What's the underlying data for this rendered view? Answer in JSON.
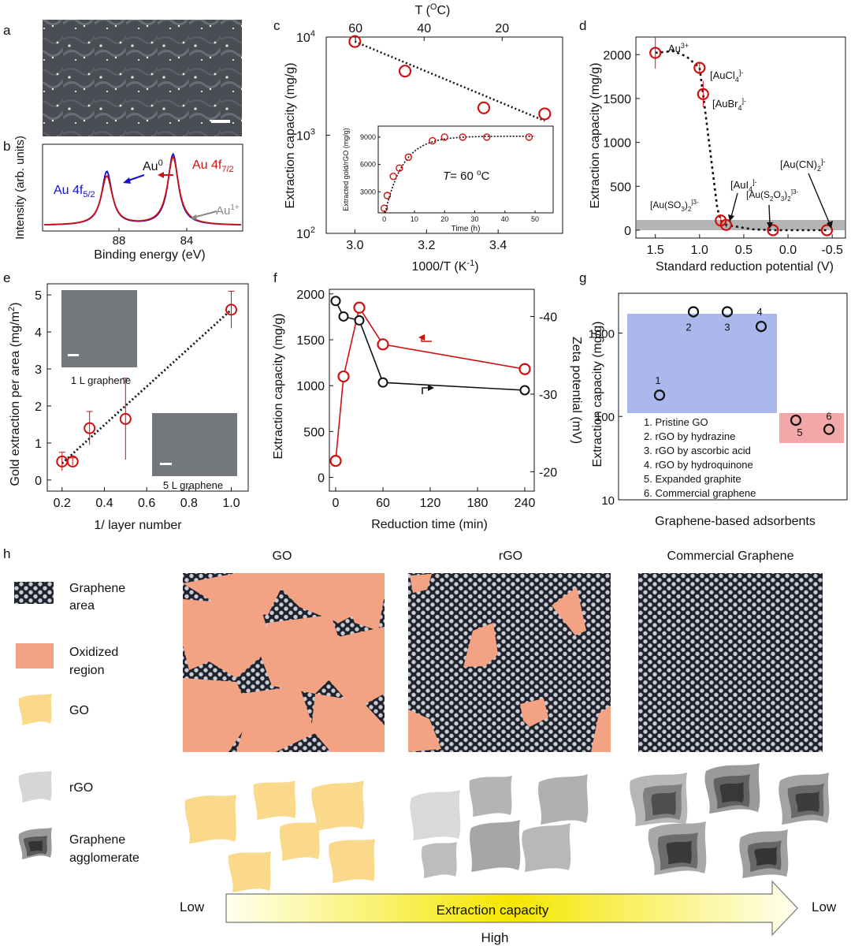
{
  "panel_letters": {
    "a": "a",
    "b": "b",
    "c": "c",
    "d": "d",
    "e": "e",
    "f": "f",
    "g": "g",
    "h": "h"
  },
  "colors": {
    "red": "#d01010",
    "blue": "#1010d0",
    "black": "#111111",
    "gray": "#888888",
    "blue_box": "#aab8ee",
    "red_box": "#f2a8a8",
    "oxidized": "#f3a283",
    "go_flake": "#fbd98a",
    "rgo_flake": "#bdbdbd",
    "graphene_bg": "#20232b",
    "hex_fill": "#c9ccd6",
    "arrow_grad_start": "#ffffee",
    "arrow_grad_end": "#f5e600"
  },
  "chart_data": [
    {
      "id": "b",
      "type": "line",
      "xlabel": "Binding energy (eV)",
      "ylabel": "Intensity (arb. units)",
      "xticks": [
        "88",
        "84"
      ],
      "annotations": {
        "au52": "Au 4f",
        "au52_sub": "5/2",
        "au0": "Au",
        "au0_sup": "0",
        "au72": "Au 4f",
        "au72_sub": "7/2",
        "au1": "Au",
        "au1_sup": "1+"
      },
      "series": [
        {
          "peaks": [
            {
              "center": 88.0,
              "height": 0.68,
              "width": 0.35
            },
            {
              "center": 84.3,
              "height": 0.9,
              "width": 0.35
            }
          ],
          "color": "blue"
        },
        {
          "peaks": [
            {
              "center": 88.0,
              "height": 0.62,
              "width": 0.38
            },
            {
              "center": 84.3,
              "height": 0.86,
              "width": 0.38
            }
          ],
          "color": "red"
        }
      ],
      "xlim": [
        91.5,
        80.5
      ]
    },
    {
      "id": "c",
      "type": "scatter",
      "yscale": "log",
      "xlabel": "1000/T (K",
      "xlabel_sup": "-1",
      "xlabel_end": ")",
      "ylabel": "Extraction capacity (mg/g)",
      "top_axis_label": "T (",
      "top_axis_sup": "O",
      "top_axis_end": "C)",
      "xticks": [
        "3.0",
        "3.2",
        "3.4"
      ],
      "top_ticks": [
        "60",
        "40",
        "20"
      ],
      "yticks": [
        "10",
        "10",
        "10"
      ],
      "ytick_exps": [
        "4",
        "3",
        "2"
      ],
      "x": [
        3.0,
        3.14,
        3.36,
        3.53
      ],
      "y": [
        9000,
        4500,
        1900,
        1650
      ],
      "fit_x": [
        3.0,
        3.53
      ],
      "fit_y": [
        9000,
        1400
      ],
      "xlim": [
        2.92,
        3.58
      ],
      "ylim": [
        100,
        10000
      ],
      "inset": {
        "xlabel": "Time (h)",
        "ylabel": "Extracted gold/rGO (mg/g)",
        "xticks": [
          "0",
          "10",
          "20",
          "30",
          "40",
          "50"
        ],
        "yticks": [
          "3000",
          "6000",
          "9000"
        ],
        "annotation": "T",
        "annotation_rest": "= 60 ",
        "annotation_sup": "o",
        "annotation_end": "C",
        "x": [
          0,
          1,
          3,
          5,
          8,
          16,
          20,
          26,
          34,
          48
        ],
        "y": [
          1200,
          2600,
          4700,
          5600,
          6800,
          8600,
          9000,
          9000,
          9000,
          9000
        ],
        "xlim": [
          -2,
          56
        ],
        "ylim": [
          700,
          10200
        ]
      }
    },
    {
      "id": "d",
      "type": "scatter",
      "xlabel": "Standard reduction potential (V)",
      "ylabel": "Extraction capacity (mg/g)",
      "xticks": [
        "1.5",
        "1.0",
        "0.5",
        "0.0",
        "-0.5"
      ],
      "yticks": [
        "0",
        "500",
        "1000",
        "1500",
        "2000"
      ],
      "x": [
        1.5,
        1.0,
        0.96,
        0.76,
        0.7,
        0.17,
        -0.44
      ],
      "y": [
        2020,
        1850,
        1550,
        110,
        60,
        0,
        0
      ],
      "labels": {
        "au3": "Au",
        "au3_sup": "3+",
        "aucl4": "[AuCl",
        "aucl4_sub": "4",
        "aucl4_sup": "]-",
        "aubr4": "[AuBr",
        "aubr4_sub": "4",
        "aubr4_sup": "]-",
        "aui4": "[AuI",
        "aui4_sub": "4",
        "aui4_sup": "]-",
        "ausulf": "[Au(SO",
        "ausulf_sub1": "3",
        "ausulf_mid": ")",
        "ausulf_sub2": "2",
        "ausulf_sup": "]3-",
        "authio": "[Au(S",
        "authio_sub1": "2",
        "authio_mid1": "O",
        "authio_sub2": "3",
        "authio_mid2": ")",
        "authio_sub3": "2",
        "authio_sup": "]3-",
        "aucn": "[Au(CN)",
        "aucn_sub": "2",
        "aucn_sup": "]-"
      },
      "xlim": [
        1.72,
        -0.65
      ],
      "ylim": [
        -90,
        2200
      ]
    },
    {
      "id": "e",
      "type": "scatter",
      "xlabel": "1/ layer number",
      "ylabel": "Gold extraction per area (mg/m",
      "ylabel_sup": "2",
      "ylabel_end": ")",
      "xticks": [
        "0.2",
        "0.4",
        "0.6",
        "0.8",
        "1.0"
      ],
      "yticks": [
        "0",
        "1",
        "2",
        "3",
        "4",
        "5"
      ],
      "x": [
        0.2,
        0.25,
        0.33,
        0.5,
        1.0
      ],
      "y": [
        0.5,
        0.5,
        1.4,
        1.65,
        4.6
      ],
      "yerr": [
        0.25,
        0.1,
        0.45,
        1.1,
        0.5
      ],
      "fit_x": [
        0.2,
        1.0
      ],
      "fit_y": [
        0.45,
        4.6
      ],
      "inset_labels": [
        "1 L graphene",
        "5 L graphene"
      ],
      "xlim": [
        0.13,
        1.08
      ],
      "ylim": [
        -0.3,
        5.3
      ]
    },
    {
      "id": "f",
      "type": "line",
      "xlabel": "Reduction time (min)",
      "ylabel": "Extraction capacity (mg/g)",
      "ylabel_right": "Zeta potential (mV)",
      "xticks": [
        "0",
        "60",
        "120",
        "180",
        "240"
      ],
      "yticks": [
        "0",
        "500",
        "1000",
        "1500",
        "2000"
      ],
      "yticks_right": [
        "-40",
        "-30",
        "-20"
      ],
      "series": [
        {
          "name": "Extraction capacity",
          "x": [
            0,
            10,
            30,
            60,
            240
          ],
          "y": [
            180,
            1100,
            1850,
            1450,
            1180
          ],
          "color": "red"
        },
        {
          "name": "Zeta potential",
          "x": [
            0,
            10,
            30,
            60,
            240
          ],
          "y": [
            -42,
            -40,
            -39.5,
            -31.5,
            -30.5
          ],
          "color": "black"
        }
      ],
      "xlim": [
        -8,
        252
      ],
      "ylim": [
        -150,
        2050
      ],
      "ylim_right": [
        -17.5,
        -43.5
      ]
    },
    {
      "id": "g",
      "type": "scatter",
      "yscale": "log",
      "xlabel": "Graphene-based adsorbents",
      "ylabel": "Extraction capacity (mg/g)",
      "yticks": [
        "10",
        "100",
        "1000"
      ],
      "points": [
        {
          "label": "1",
          "value": 180
        },
        {
          "label": "2",
          "value": 1800
        },
        {
          "label": "3",
          "value": 1800
        },
        {
          "label": "4",
          "value": 1200
        },
        {
          "label": "5",
          "value": 90
        },
        {
          "label": "6",
          "value": 70
        }
      ],
      "legend": [
        "1. Pristine GO",
        "2. rGO by hydrazine",
        "3. rGO by ascorbic acid",
        "4. rGO by hydroquinone",
        "5. Expanded graphite",
        "6. Commercial graphene"
      ],
      "ylim": [
        10,
        3000
      ]
    }
  ],
  "panel_h": {
    "titles": [
      "GO",
      "rGO",
      "Commercial Graphene"
    ],
    "legend": {
      "graphene_area_1": "Graphene",
      "graphene_area_2": "area",
      "oxidized_1": "Oxidized",
      "oxidized_2": "region",
      "go": "GO",
      "rgo": "rGO",
      "agglomerate_1": "Graphene",
      "agglomerate_2": "agglomerate"
    },
    "arrow_text": "Extraction capacity",
    "low_left": "Low",
    "low_right": "Low",
    "high_bottom": "High"
  }
}
